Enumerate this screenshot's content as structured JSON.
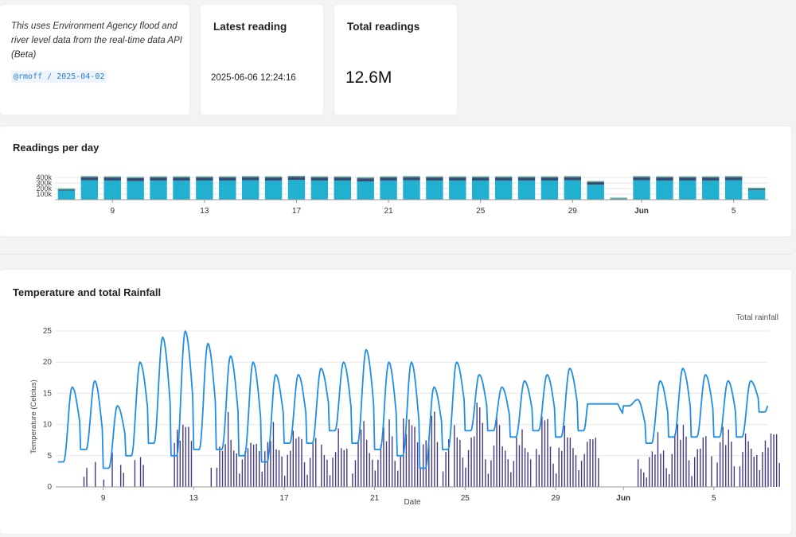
{
  "note": {
    "text": "This uses Environment Agency flood and river level data from the real-time data API (Beta)",
    "tag": "@rmoff / 2025-04-02"
  },
  "latest": {
    "title": "Latest reading",
    "value": "2025-06-06 12:24:16"
  },
  "total": {
    "title": "Total readings",
    "value": "12.6M"
  },
  "colors": {
    "bar_main": "#21b0cf",
    "bar_top": "#3c4a73",
    "temp_line": "#1f8ee6",
    "rain_bar": "#433a86"
  },
  "chart_data": [
    {
      "type": "bar",
      "title": "Readings per day",
      "y_ticks": [
        "400k",
        "300k",
        "200k",
        "100k"
      ],
      "ylim": [
        0,
        430000
      ],
      "x_tick_labels": [
        "9",
        "13",
        "17",
        "21",
        "25",
        "29",
        "Jun",
        "5"
      ],
      "x_tick_dates": [
        9,
        13,
        17,
        21,
        25,
        29,
        32,
        36
      ],
      "x_range": [
        6.5,
        37.5
      ],
      "days": [
        7,
        8,
        9,
        10,
        11,
        12,
        13,
        14,
        15,
        16,
        17,
        18,
        19,
        20,
        21,
        22,
        23,
        24,
        25,
        26,
        27,
        28,
        29,
        30,
        31,
        32,
        33,
        34,
        35,
        36,
        37
      ],
      "series": [
        {
          "values": [
            165000,
            350000,
            345000,
            335000,
            345000,
            345000,
            345000,
            345000,
            350000,
            345000,
            355000,
            345000,
            345000,
            330000,
            345000,
            350000,
            345000,
            345000,
            345000,
            345000,
            345000,
            345000,
            350000,
            270000,
            10000,
            350000,
            345000,
            345000,
            345000,
            350000,
            175000
          ]
        },
        {
          "values": [
            15000,
            55000,
            55000,
            55000,
            55000,
            55000,
            55000,
            55000,
            55000,
            55000,
            55000,
            55000,
            55000,
            55000,
            55000,
            55000,
            55000,
            55000,
            55000,
            55000,
            55000,
            55000,
            55000,
            45000,
            5000,
            55000,
            55000,
            55000,
            55000,
            55000,
            20000
          ]
        }
      ]
    },
    {
      "type": "line",
      "title": "Temperature and total Rainfall",
      "xlabel": "Date",
      "ylabel": "Temperature (Celcius)",
      "secondary_label": "Total rainfall",
      "y_ticks": [
        0,
        5,
        10,
        15,
        20,
        25
      ],
      "ylim": [
        0,
        25
      ],
      "x_tick_labels": [
        "9",
        "13",
        "17",
        "21",
        "25",
        "29",
        "Jun",
        "5"
      ],
      "x_tick_dates": [
        9,
        13,
        17,
        21,
        25,
        29,
        32,
        36
      ],
      "x_range": [
        6.9,
        38.4
      ],
      "daily_max": [
        16,
        17,
        13,
        20,
        24,
        25,
        23,
        21,
        20,
        18,
        18,
        19,
        20,
        22,
        20,
        20,
        16,
        20,
        18,
        16,
        17,
        18,
        19,
        21,
        20,
        14,
        17,
        19,
        18,
        17,
        17,
        16
      ],
      "daily_min": [
        4,
        6,
        3,
        5,
        7,
        5,
        6,
        6,
        5,
        4,
        7,
        7,
        9,
        7,
        6,
        5,
        3,
        6,
        9,
        9,
        8,
        9,
        8,
        9,
        12,
        13,
        7,
        8,
        8,
        8,
        8,
        12
      ],
      "rain_dates": [
        7,
        8,
        9,
        10,
        11,
        12,
        13,
        14,
        15,
        16,
        17,
        18,
        19,
        20,
        21,
        22,
        23,
        24,
        25,
        26,
        27,
        28,
        29,
        30,
        31,
        32,
        33,
        34,
        35,
        36,
        37,
        38
      ],
      "rain_max": [
        0,
        5,
        6,
        6,
        4,
        14,
        7,
        13,
        12,
        11,
        10,
        9,
        10,
        11,
        13,
        16,
        13,
        12,
        14,
        12,
        12,
        12,
        12,
        11,
        0,
        5,
        10,
        11,
        11,
        11,
        11,
        11
      ]
    }
  ]
}
